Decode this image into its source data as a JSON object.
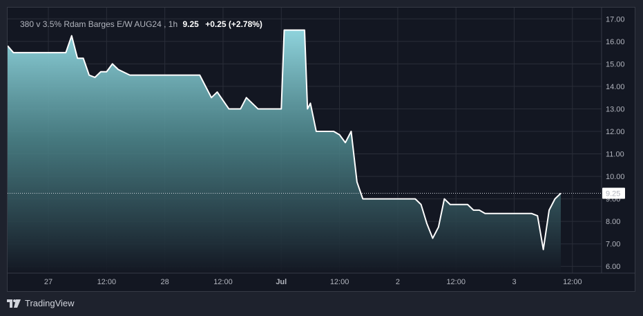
{
  "legend": {
    "symbol": "380 v 3.5% Rdam Barges E/W AUG24",
    "interval": "1h",
    "last_price": "9.25",
    "change": "+0.25 (+2.78%)"
  },
  "footer": {
    "brand": "TradingView"
  },
  "colors": {
    "background": "#131722",
    "frame": "#1e222d",
    "grid": "#2a2e39",
    "line": "#ffffff",
    "area_top": "#8fd3dc",
    "area_bottom": "#131722",
    "text": "#b2b5be"
  },
  "chart_data": {
    "type": "area",
    "price_label": "9.25",
    "ylim": [
      5.7,
      17.5
    ],
    "y_ticks": [
      "17.00",
      "16.00",
      "15.00",
      "14.00",
      "13.00",
      "12.00",
      "11.00",
      "10.00",
      "9.00",
      "8.00",
      "7.00",
      "6.00"
    ],
    "y_tick_values": [
      17,
      16,
      15,
      14,
      13,
      12,
      11,
      10,
      9,
      8,
      7,
      6
    ],
    "x_range": [
      0,
      102
    ],
    "x_ticks": [
      {
        "label": "27",
        "x": 7,
        "bold": false
      },
      {
        "label": "12:00",
        "x": 17,
        "bold": false
      },
      {
        "label": "28",
        "x": 27,
        "bold": false
      },
      {
        "label": "12:00",
        "x": 37,
        "bold": false
      },
      {
        "label": "Jul",
        "x": 47,
        "bold": true
      },
      {
        "label": "12:00",
        "x": 57,
        "bold": false
      },
      {
        "label": "2",
        "x": 67,
        "bold": false
      },
      {
        "label": "12:00",
        "x": 77,
        "bold": false
      },
      {
        "label": "3",
        "x": 87,
        "bold": false
      },
      {
        "label": "12:00",
        "x": 97,
        "bold": false
      }
    ],
    "x": [
      0,
      1,
      2,
      5,
      8,
      10,
      11,
      12,
      13,
      14,
      15,
      16,
      17,
      18,
      19,
      21,
      24,
      26,
      28,
      31,
      33,
      34,
      35,
      36,
      38,
      39,
      40,
      41,
      43,
      45,
      46,
      47,
      47.5,
      48,
      51,
      51.5,
      52,
      53,
      54,
      56,
      57,
      58,
      59,
      60,
      61,
      62,
      65,
      67,
      70,
      71,
      72,
      73,
      74,
      75,
      76,
      77,
      78,
      79,
      80,
      81,
      82,
      84,
      86,
      88,
      90,
      91,
      92,
      93,
      94,
      95
    ],
    "values": [
      15.8,
      15.5,
      15.5,
      15.5,
      15.5,
      15.5,
      16.25,
      15.25,
      15.25,
      14.5,
      14.4,
      14.65,
      14.65,
      15.0,
      14.75,
      14.5,
      14.5,
      14.5,
      14.5,
      14.5,
      14.5,
      14.0,
      13.5,
      13.75,
      13.0,
      13.0,
      13.0,
      13.5,
      13.0,
      13.0,
      13.0,
      13.0,
      16.5,
      16.5,
      16.5,
      13.0,
      13.25,
      12.0,
      12.0,
      12.0,
      11.85,
      11.5,
      12.0,
      9.75,
      9.0,
      9.0,
      9.0,
      9.0,
      9.0,
      8.75,
      7.9,
      7.25,
      7.75,
      9.0,
      8.75,
      8.75,
      8.75,
      8.75,
      8.5,
      8.5,
      8.35,
      8.35,
      8.35,
      8.35,
      8.35,
      8.25,
      6.75,
      8.5,
      9.0,
      9.25
    ]
  }
}
